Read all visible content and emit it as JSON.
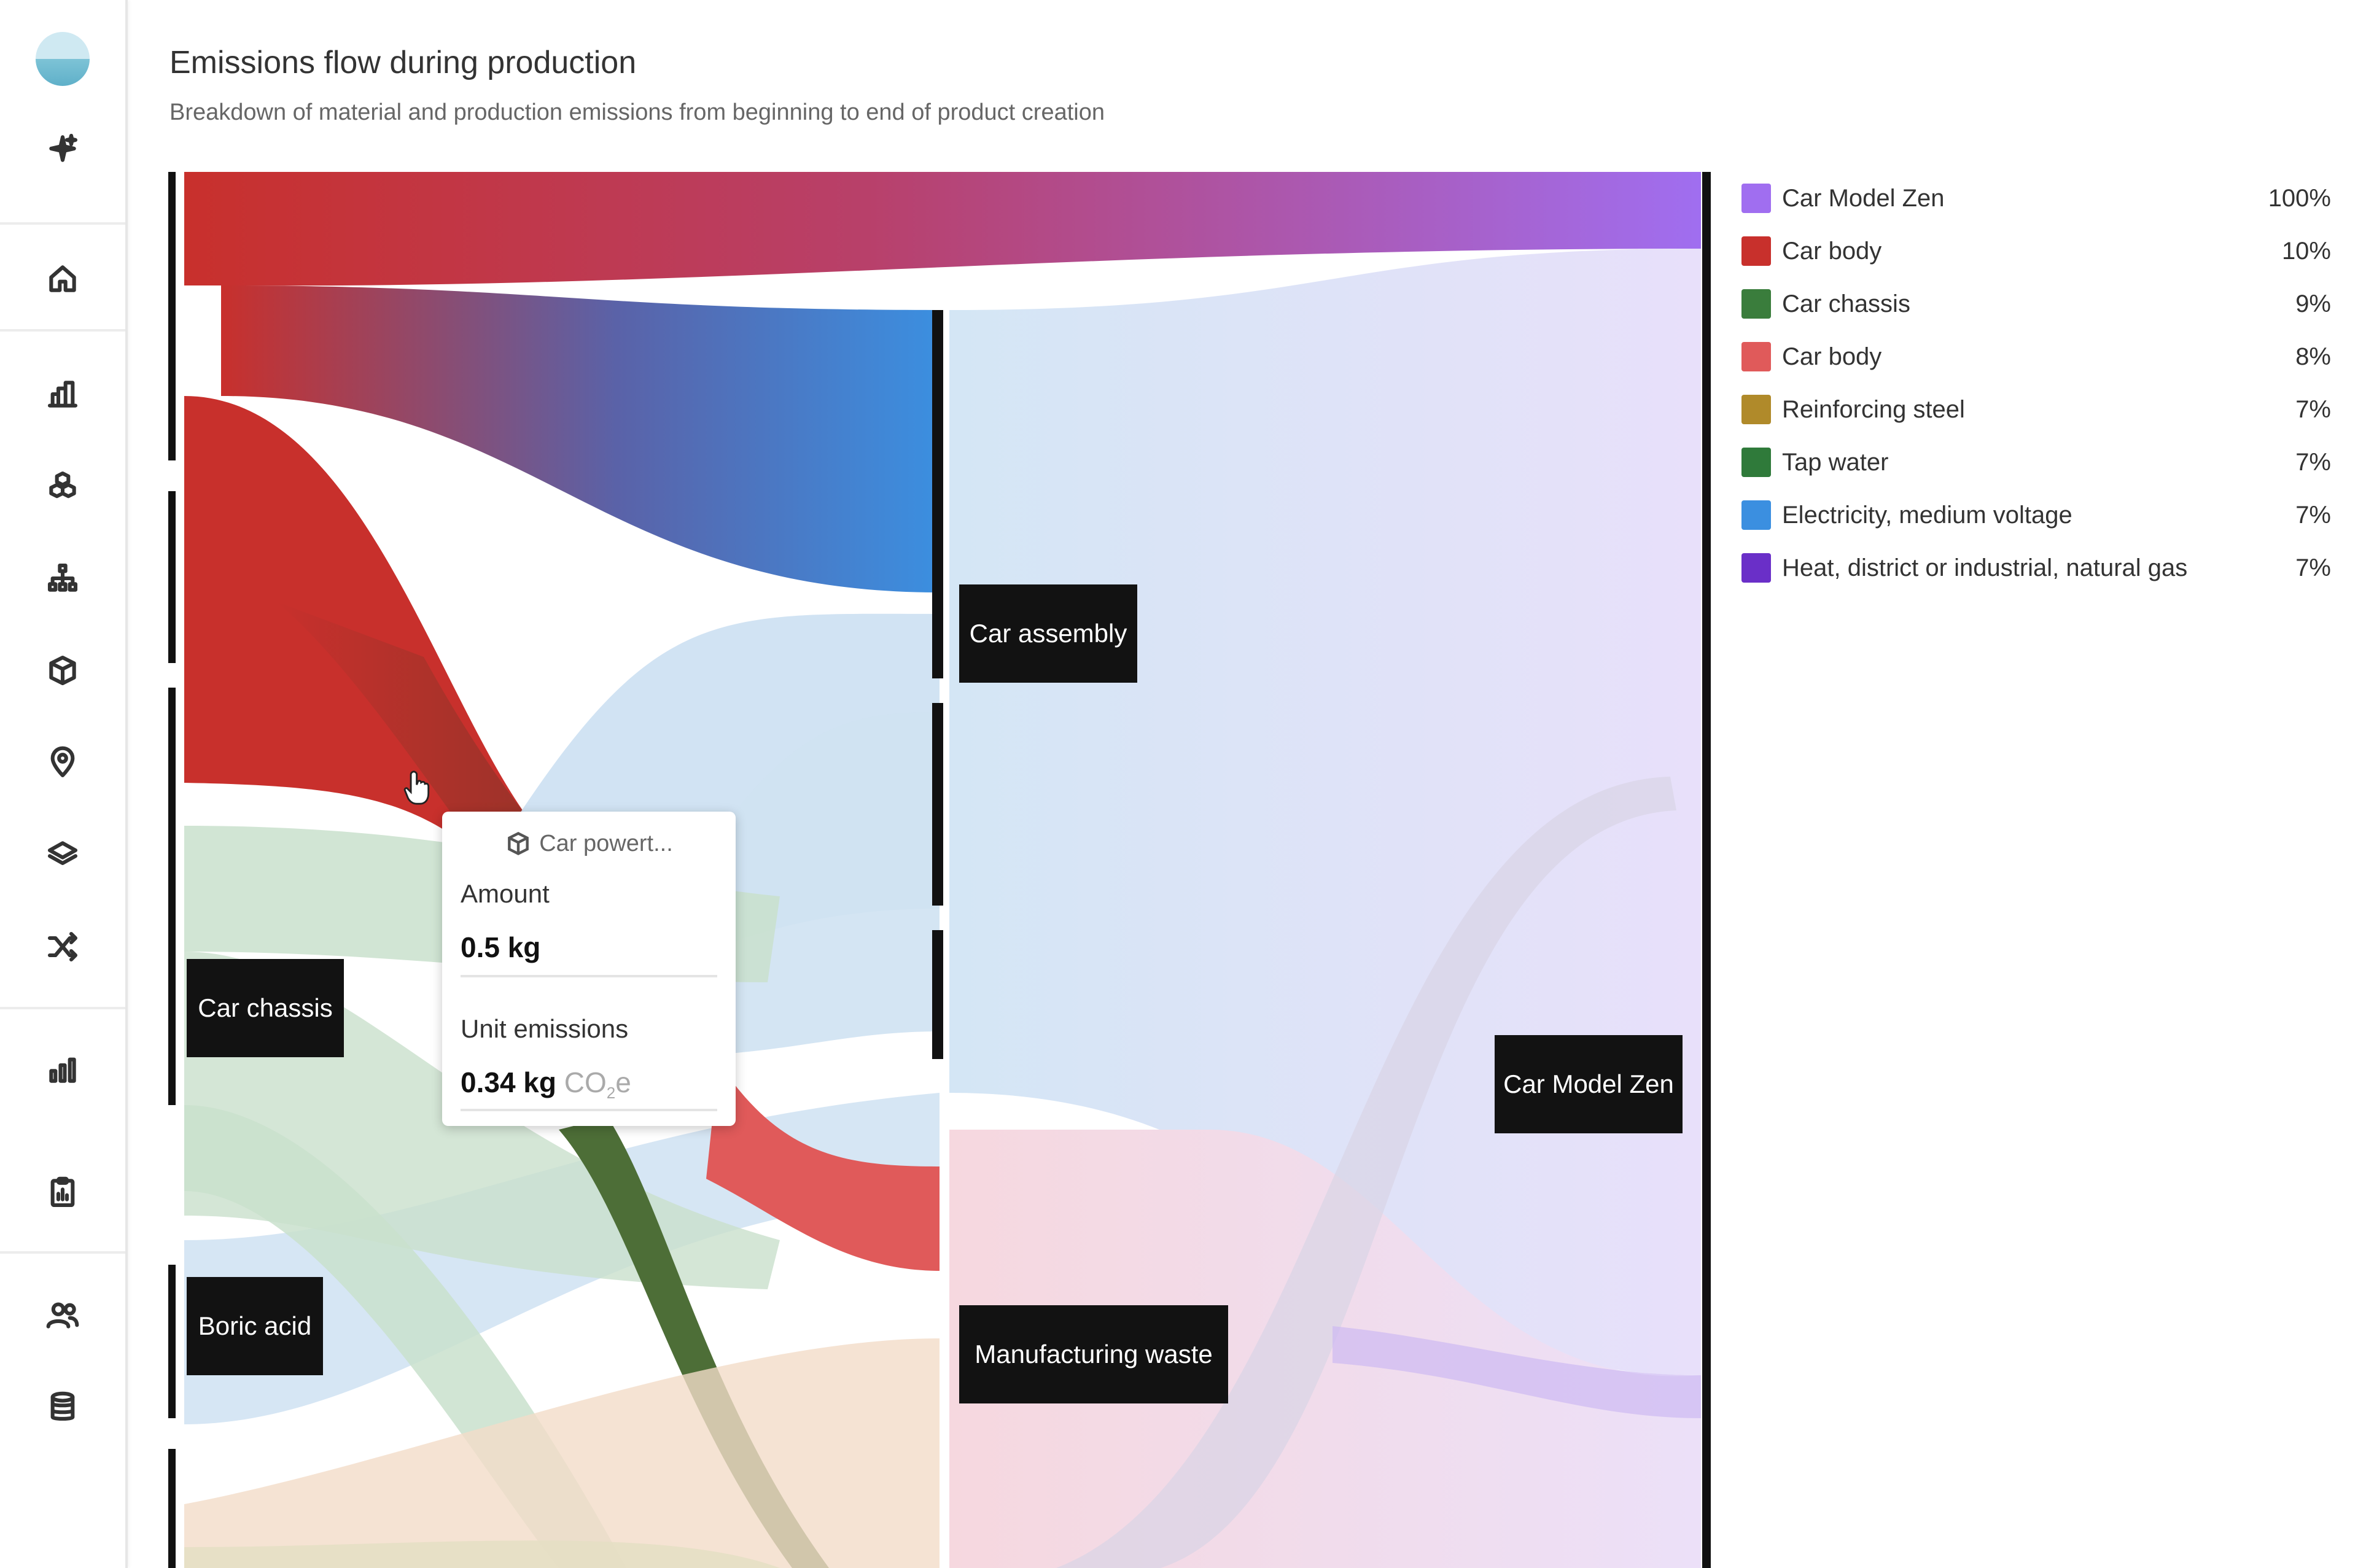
{
  "header": {
    "title": "Emissions flow during production",
    "subtitle": "Breakdown of material and production emissions from beginning to end of product creation"
  },
  "sidebar": {
    "icons": [
      "sparkle-icon",
      "home-icon",
      "buildings-icon",
      "materials-icon",
      "hierarchy-icon",
      "box-icon",
      "location-icon",
      "layers-icon",
      "shuffle-icon",
      "bar-chart-icon",
      "report-icon",
      "users-icon",
      "database-icon"
    ]
  },
  "colors": {
    "car_model_zen": "#a06ef0",
    "car_body": "#c8302c",
    "car_chassis": "#3a7d3c",
    "car_body_light": "#e05a5a",
    "reinforcing_steel": "#b08a2a",
    "tap_water": "#2f7a3a",
    "electricity": "#3b8fe0",
    "heat": "#6a2fc8"
  },
  "chart_data": {
    "type": "sankey",
    "title": "Emissions flow during production",
    "nodes": [
      "Car chassis",
      "Boric acid",
      "Car assembly",
      "Manufacturing waste",
      "Car Model Zen"
    ],
    "legend": [
      {
        "name": "Car Model Zen",
        "percent": "100%",
        "color": "#a06ef0"
      },
      {
        "name": "Car body",
        "percent": "10%",
        "color": "#c8302c"
      },
      {
        "name": "Car chassis",
        "percent": "9%",
        "color": "#3a7d3c"
      },
      {
        "name": "Car body",
        "percent": "8%",
        "color": "#e05a5a"
      },
      {
        "name": "Reinforcing steel",
        "percent": "7%",
        "color": "#b08a2a"
      },
      {
        "name": "Tap water",
        "percent": "7%",
        "color": "#2f7a3a"
      },
      {
        "name": "Electricity, medium voltage",
        "percent": "7%",
        "color": "#3b8fe0"
      },
      {
        "name": "Heat, district or industrial, natural gas",
        "percent": "7%",
        "color": "#6a2fc8"
      }
    ]
  },
  "tooltip": {
    "name": "Car powert...",
    "amount_label": "Amount",
    "amount_value": "0.5 kg",
    "emissions_label": "Unit emissions",
    "emissions_value": "0.34 kg",
    "emissions_unit": "CO",
    "emissions_sub": "2",
    "emissions_unit_suffix": "e"
  }
}
